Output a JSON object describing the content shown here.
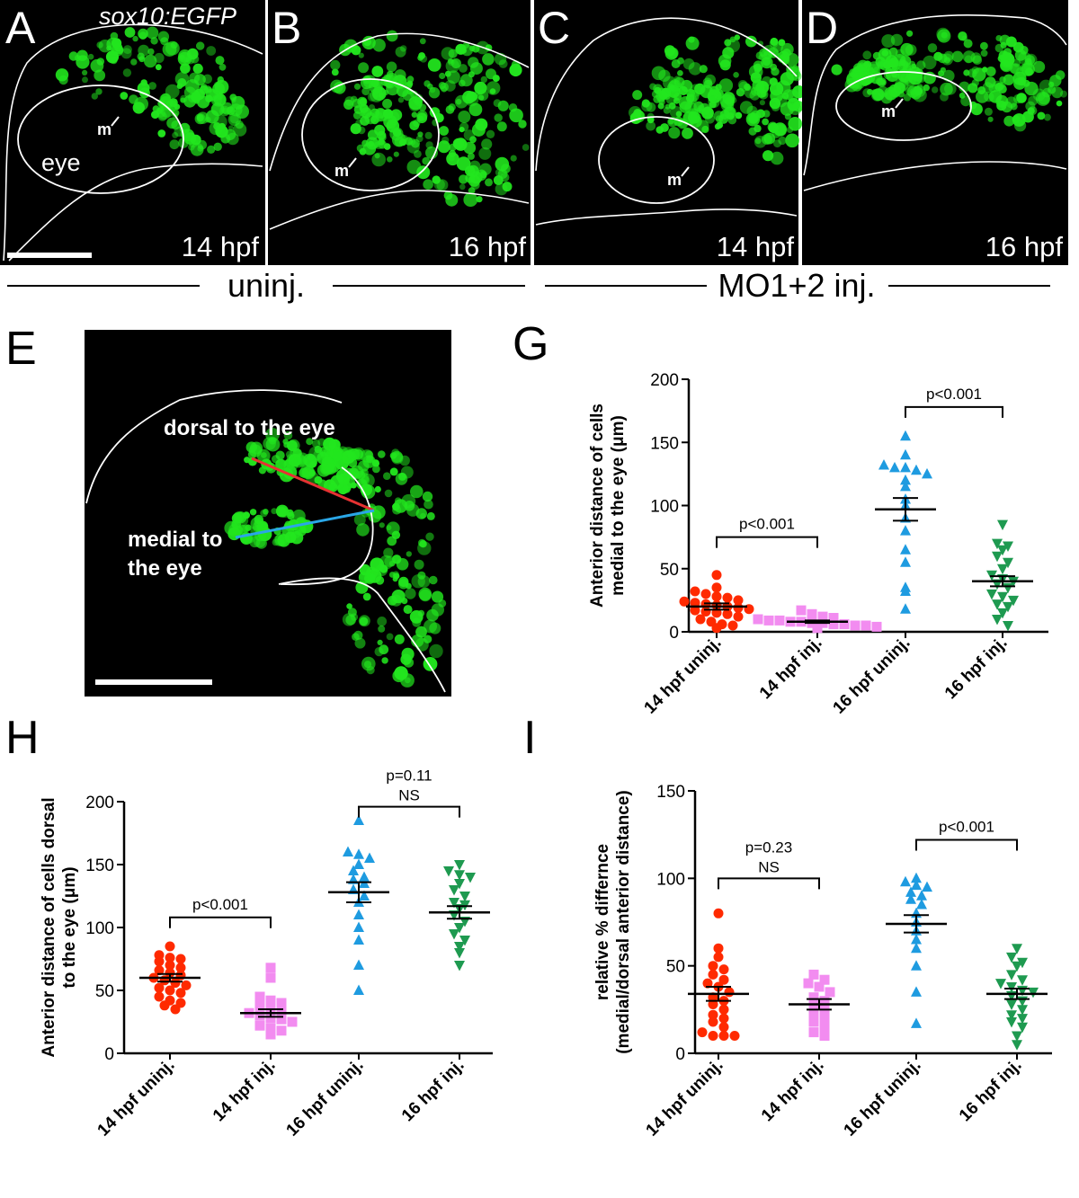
{
  "panels": {
    "A": {
      "letter": "A",
      "stage": "14 hpf",
      "eye_label": "eye",
      "m": "m",
      "reporter": "sox10:EGFP"
    },
    "B": {
      "letter": "B",
      "stage": "16 hpf",
      "m": "m"
    },
    "C": {
      "letter": "C",
      "stage": "14 hpf",
      "m": "m"
    },
    "D": {
      "letter": "D",
      "stage": "16 hpf",
      "m": "m"
    },
    "E": {
      "letter": "E",
      "dorsal": "dorsal to the eye",
      "medial_line1": "medial to",
      "medial_line2": "the eye"
    },
    "G": {
      "letter": "G"
    },
    "H": {
      "letter": "H"
    },
    "I": {
      "letter": "I"
    }
  },
  "groups": {
    "uninj": "uninj.",
    "inj": "MO1+2 inj."
  },
  "colors": {
    "14_uninj": "#ff2a00",
    "14_inj": "#f28cf0",
    "16_uninj": "#1e9be0",
    "16_inj": "#1e9a50",
    "gfp": "#22e61e",
    "dorsal_line": "#e63232",
    "medial_line": "#2aa6e6"
  },
  "chart_data": [
    {
      "id": "G",
      "type": "scatter",
      "ylabel_line1": "Anterior distance of cells",
      "ylabel_line2": "medial to the eye (μm)",
      "ylim": [
        0,
        200
      ],
      "yticks": [
        0,
        50,
        100,
        150,
        200
      ],
      "categories": [
        "14 hpf uninj.",
        "14 hpf inj.",
        "16 hpf uninj.",
        "16 hpf inj."
      ],
      "markers": [
        "circle",
        "square",
        "triangle-up",
        "triangle-down"
      ],
      "series": [
        {
          "values": [
            45,
            35,
            32,
            30,
            28,
            27,
            25,
            24,
            23,
            22,
            21,
            20,
            19,
            18,
            17,
            16,
            15,
            14,
            12,
            10,
            8,
            6,
            5,
            3
          ],
          "mean": 20,
          "sem": 2.5
        },
        {
          "values": [
            17,
            14,
            12,
            11,
            10,
            9,
            9,
            8,
            8,
            7,
            7,
            6,
            6,
            5,
            5,
            4,
            3
          ],
          "mean": 8,
          "sem": 1
        },
        {
          "values": [
            155,
            140,
            132,
            130,
            130,
            128,
            125,
            120,
            115,
            105,
            100,
            90,
            80,
            65,
            55,
            35,
            32,
            18
          ],
          "mean": 97,
          "sem": 9
        },
        {
          "values": [
            85,
            70,
            68,
            65,
            60,
            55,
            50,
            45,
            42,
            40,
            38,
            35,
            30,
            28,
            25,
            22,
            20,
            15,
            10,
            5
          ],
          "mean": 40,
          "sem": 4
        }
      ],
      "comparisons": [
        {
          "from": 0,
          "to": 1,
          "y": 75,
          "label": "p<0.001",
          "note": ""
        },
        {
          "from": 2,
          "to": 3,
          "y": 178,
          "label": "p<0.001",
          "note": ""
        }
      ]
    },
    {
      "id": "H",
      "type": "scatter",
      "ylabel_line1": "Anterior distance of cells dorsal",
      "ylabel_line2": "to the eye (μm)",
      "ylim": [
        0,
        200
      ],
      "yticks": [
        0,
        50,
        100,
        150,
        200
      ],
      "categories": [
        "14 hpf uninj.",
        "14 hpf inj.",
        "16 hpf uninj.",
        "16 hpf inj."
      ],
      "markers": [
        "circle",
        "square",
        "triangle-up",
        "triangle-down"
      ],
      "series": [
        {
          "values": [
            85,
            78,
            76,
            75,
            73,
            70,
            68,
            66,
            64,
            62,
            60,
            58,
            56,
            54,
            52,
            50,
            48,
            45,
            42,
            40,
            38,
            35
          ],
          "mean": 60,
          "sem": 3
        },
        {
          "values": [
            68,
            60,
            45,
            42,
            40,
            38,
            35,
            33,
            32,
            30,
            28,
            27,
            25,
            22,
            20,
            18,
            15
          ],
          "mean": 32,
          "sem": 3
        },
        {
          "values": [
            185,
            160,
            158,
            155,
            150,
            145,
            140,
            138,
            135,
            130,
            125,
            120,
            110,
            100,
            90,
            70,
            50
          ],
          "mean": 128,
          "sem": 8
        },
        {
          "values": [
            150,
            145,
            142,
            140,
            135,
            130,
            125,
            120,
            118,
            115,
            110,
            105,
            100,
            95,
            90,
            85,
            80,
            70
          ],
          "mean": 112,
          "sem": 5
        }
      ],
      "comparisons": [
        {
          "from": 0,
          "to": 1,
          "y": 108,
          "label": "p<0.001",
          "note": ""
        },
        {
          "from": 2,
          "to": 3,
          "y": 196,
          "label": "p=0.11",
          "note": "NS"
        }
      ]
    },
    {
      "id": "I",
      "type": "scatter",
      "ylabel_line1": "relative % differnce",
      "ylabel_line2": "(medial/dorsal anterior distance)",
      "ylim": [
        0,
        150
      ],
      "yticks": [
        0,
        50,
        100,
        150
      ],
      "categories": [
        "14 hpf uninj.",
        "14 hpf inj.",
        "16 hpf uninj.",
        "16 hpf inj."
      ],
      "markers": [
        "circle",
        "square",
        "triangle-up",
        "triangle-down"
      ],
      "series": [
        {
          "values": [
            80,
            60,
            55,
            50,
            48,
            45,
            42,
            40,
            38,
            35,
            32,
            30,
            28,
            25,
            22,
            20,
            18,
            15,
            12,
            10,
            10,
            10
          ],
          "mean": 34,
          "sem": 4
        },
        {
          "values": [
            45,
            42,
            40,
            38,
            35,
            32,
            30,
            28,
            25,
            22,
            20,
            18,
            15,
            12,
            10
          ],
          "mean": 28,
          "sem": 3
        },
        {
          "values": [
            100,
            98,
            96,
            95,
            92,
            90,
            88,
            85,
            80,
            75,
            70,
            65,
            60,
            50,
            35,
            17
          ],
          "mean": 74,
          "sem": 5
        },
        {
          "values": [
            60,
            55,
            52,
            50,
            45,
            42,
            40,
            38,
            36,
            35,
            33,
            30,
            28,
            25,
            22,
            20,
            18,
            15,
            10,
            5
          ],
          "mean": 34,
          "sem": 3
        }
      ],
      "comparisons": [
        {
          "from": 0,
          "to": 1,
          "y": 100,
          "label": "p=0.23",
          "note": "NS"
        },
        {
          "from": 2,
          "to": 3,
          "y": 122,
          "label": "p<0.001",
          "note": ""
        }
      ]
    }
  ]
}
